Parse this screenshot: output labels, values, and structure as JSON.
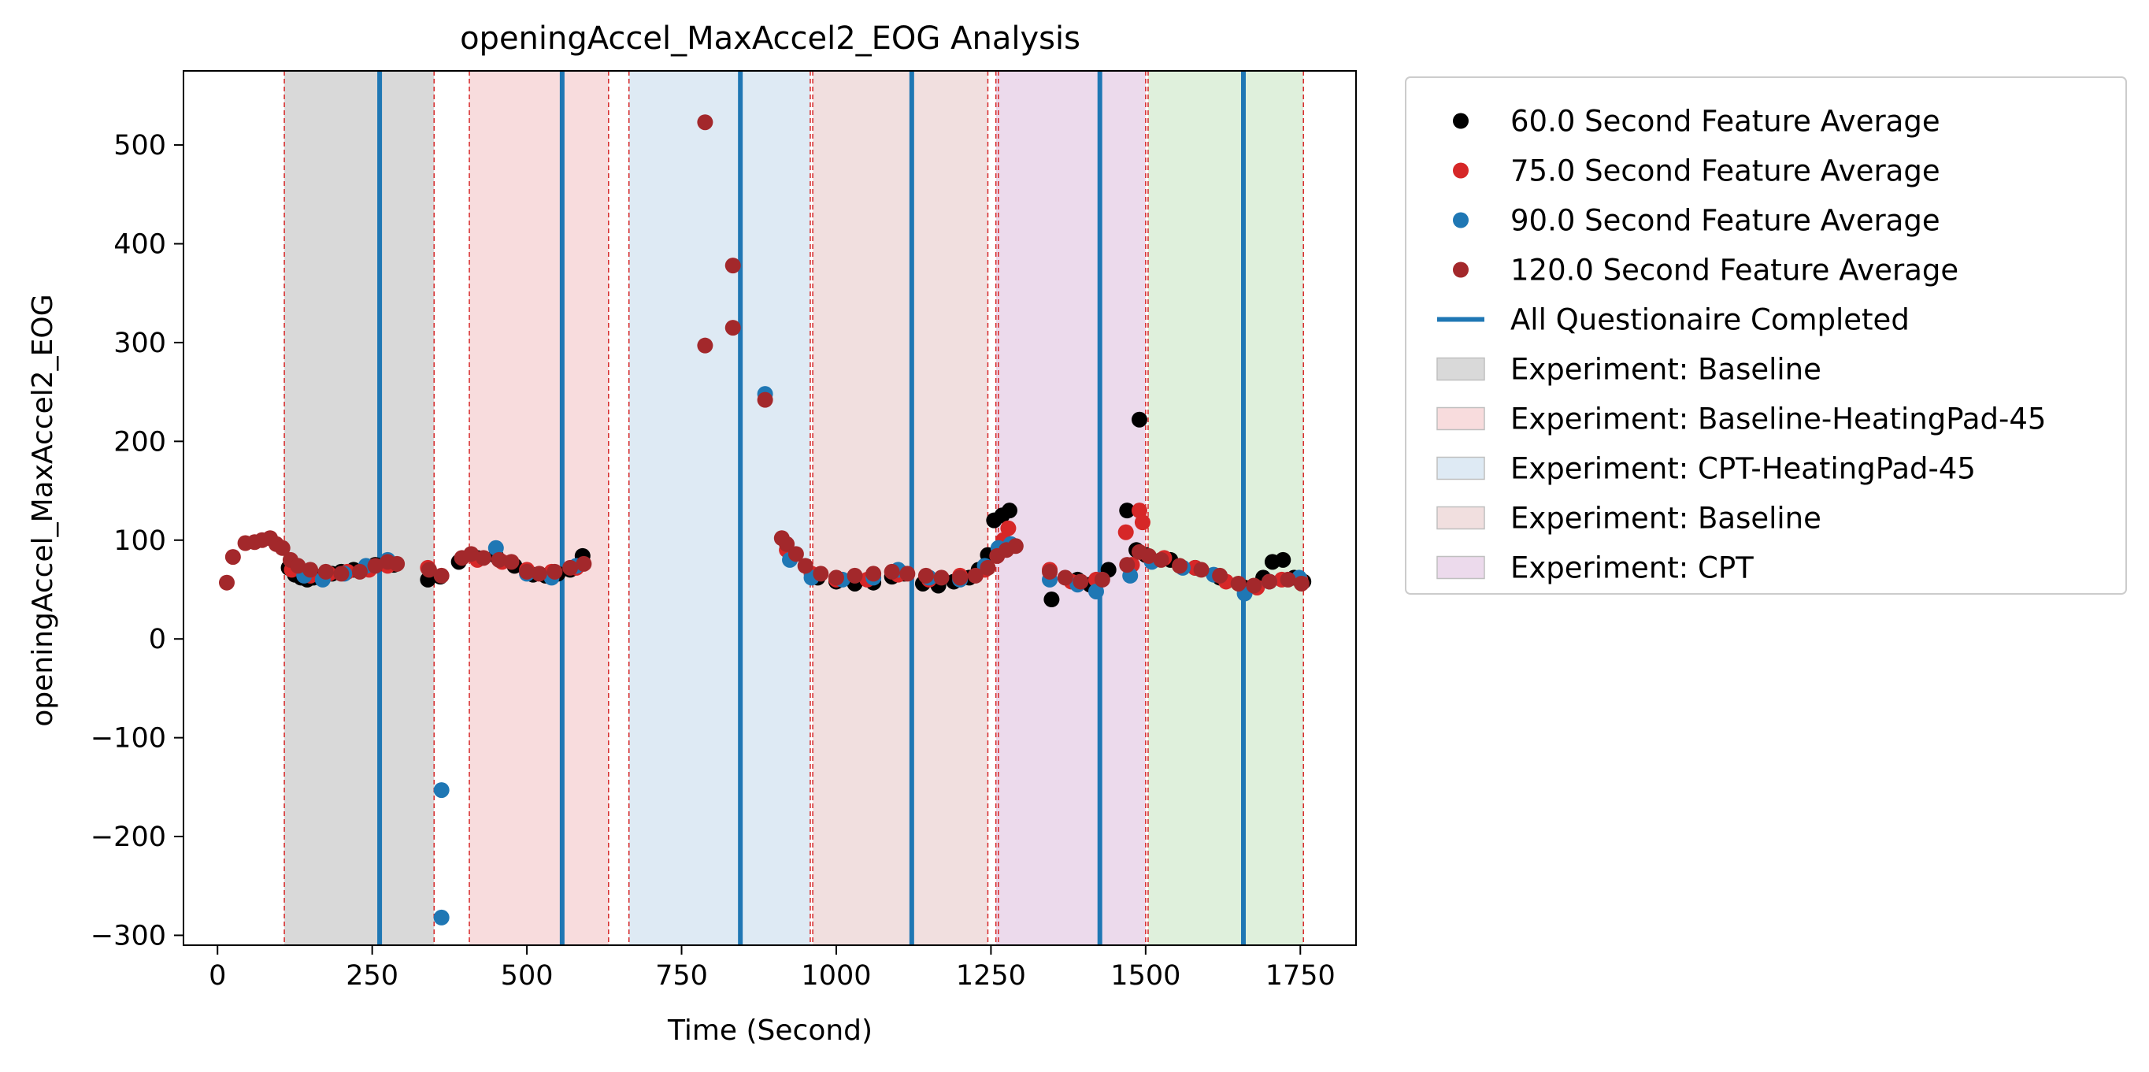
{
  "chart_data": {
    "type": "scatter",
    "title": "openingAccel_MaxAccel2_EOG Analysis",
    "xlabel": "Time (Second)",
    "ylabel": "openingAccel_MaxAccel2_EOG",
    "xlim": [
      -55,
      1840
    ],
    "ylim": [
      -310,
      575
    ],
    "xticks": [
      0,
      250,
      500,
      750,
      1000,
      1250,
      1500,
      1750
    ],
    "yticks": [
      -300,
      -200,
      -100,
      0,
      100,
      200,
      300,
      400,
      500
    ],
    "grid": false,
    "legend_position": "outside-right",
    "regions": [
      {
        "name": "Experiment: Baseline",
        "x0": 108,
        "x1": 350,
        "color": "#d9d9d9"
      },
      {
        "name": "Experiment: Baseline-HeatingPad-45",
        "x0": 407,
        "x1": 632,
        "color": "#f8dcdd"
      },
      {
        "name": "Experiment: CPT-HeatingPad-45",
        "x0": 665,
        "x1": 958,
        "color": "#deeaf4"
      },
      {
        "name": "Experiment: Baseline",
        "x0": 962,
        "x1": 1245,
        "color": "#f1dfdf"
      },
      {
        "name": "Experiment: CPT",
        "x0": 1258,
        "x1": 1500,
        "color": "#ecdaec"
      },
      {
        "name": "",
        "x0": 1504,
        "x1": 1755,
        "color": "#dff0dc"
      }
    ],
    "boundaries": [
      108,
      350,
      407,
      632,
      665,
      958,
      962,
      1245,
      1258,
      1262,
      1500,
      1504,
      1755
    ],
    "questionnaire_lines": {
      "name": "All Questionaire Completed",
      "x": [
        262,
        557,
        845,
        1122,
        1426,
        1658
      ],
      "color": "#1f77b4"
    },
    "series": [
      {
        "name": "60.0 Second Feature Average",
        "color": "#000000",
        "points": [
          [
            115,
            72
          ],
          [
            125,
            65
          ],
          [
            135,
            62
          ],
          [
            145,
            60
          ],
          [
            155,
            62
          ],
          [
            170,
            64
          ],
          [
            185,
            66
          ],
          [
            200,
            68
          ],
          [
            220,
            70
          ],
          [
            240,
            72
          ],
          [
            255,
            75
          ],
          [
            270,
            76
          ],
          [
            285,
            75
          ],
          [
            340,
            60
          ],
          [
            360,
            63
          ],
          [
            390,
            78
          ],
          [
            420,
            82
          ],
          [
            450,
            84
          ],
          [
            480,
            74
          ],
          [
            510,
            65
          ],
          [
            530,
            64
          ],
          [
            550,
            66
          ],
          [
            570,
            70
          ],
          [
            590,
            84
          ],
          [
            970,
            62
          ],
          [
            1000,
            58
          ],
          [
            1030,
            56
          ],
          [
            1060,
            57
          ],
          [
            1090,
            63
          ],
          [
            1110,
            66
          ],
          [
            1140,
            56
          ],
          [
            1165,
            54
          ],
          [
            1190,
            58
          ],
          [
            1215,
            62
          ],
          [
            1230,
            70
          ],
          [
            1245,
            85
          ],
          [
            1255,
            120
          ],
          [
            1268,
            125
          ],
          [
            1280,
            130
          ],
          [
            1348,
            40
          ],
          [
            1390,
            60
          ],
          [
            1410,
            55
          ],
          [
            1440,
            70
          ],
          [
            1470,
            130
          ],
          [
            1485,
            90
          ],
          [
            1490,
            222
          ],
          [
            1500,
            85
          ],
          [
            1540,
            80
          ],
          [
            1580,
            72
          ],
          [
            1620,
            62
          ],
          [
            1660,
            52
          ],
          [
            1690,
            62
          ],
          [
            1705,
            78
          ],
          [
            1722,
            80
          ],
          [
            1740,
            62
          ],
          [
            1755,
            58
          ]
        ]
      },
      {
        "name": "75.0 Second Feature Average",
        "color": "#d62728",
        "points": [
          [
            120,
            70
          ],
          [
            150,
            64
          ],
          [
            180,
            66
          ],
          [
            210,
            68
          ],
          [
            245,
            70
          ],
          [
            275,
            74
          ],
          [
            340,
            72
          ],
          [
            420,
            80
          ],
          [
            460,
            78
          ],
          [
            500,
            70
          ],
          [
            540,
            68
          ],
          [
            580,
            72
          ],
          [
            920,
            90
          ],
          [
            960,
            66
          ],
          [
            1000,
            60
          ],
          [
            1050,
            60
          ],
          [
            1100,
            65
          ],
          [
            1150,
            60
          ],
          [
            1200,
            64
          ],
          [
            1240,
            70
          ],
          [
            1270,
            100
          ],
          [
            1278,
            112
          ],
          [
            1345,
            70
          ],
          [
            1380,
            58
          ],
          [
            1420,
            60
          ],
          [
            1468,
            108
          ],
          [
            1478,
            75
          ],
          [
            1490,
            130
          ],
          [
            1495,
            118
          ],
          [
            1530,
            82
          ],
          [
            1580,
            72
          ],
          [
            1630,
            58
          ],
          [
            1680,
            52
          ],
          [
            1720,
            60
          ],
          [
            1750,
            60
          ]
        ]
      },
      {
        "name": "90.0 Second Feature Average",
        "color": "#1f77b4",
        "points": [
          [
            140,
            64
          ],
          [
            170,
            60
          ],
          [
            205,
            66
          ],
          [
            240,
            74
          ],
          [
            275,
            80
          ],
          [
            362,
            -153
          ],
          [
            362,
            -282
          ],
          [
            450,
            92
          ],
          [
            500,
            66
          ],
          [
            540,
            62
          ],
          [
            580,
            74
          ],
          [
            885,
            248
          ],
          [
            925,
            80
          ],
          [
            960,
            62
          ],
          [
            1010,
            60
          ],
          [
            1060,
            62
          ],
          [
            1100,
            70
          ],
          [
            1150,
            62
          ],
          [
            1200,
            60
          ],
          [
            1240,
            74
          ],
          [
            1262,
            92
          ],
          [
            1282,
            96
          ],
          [
            1345,
            60
          ],
          [
            1390,
            55
          ],
          [
            1420,
            48
          ],
          [
            1475,
            64
          ],
          [
            1510,
            78
          ],
          [
            1560,
            72
          ],
          [
            1610,
            65
          ],
          [
            1660,
            46
          ],
          [
            1700,
            58
          ],
          [
            1748,
            62
          ]
        ]
      },
      {
        "name": "120.0 Second Feature Average",
        "color": "#a3282b",
        "points": [
          [
            15,
            57
          ],
          [
            25,
            83
          ],
          [
            45,
            97
          ],
          [
            60,
            98
          ],
          [
            72,
            100
          ],
          [
            85,
            102
          ],
          [
            95,
            96
          ],
          [
            105,
            92
          ],
          [
            118,
            80
          ],
          [
            130,
            74
          ],
          [
            150,
            70
          ],
          [
            175,
            68
          ],
          [
            200,
            66
          ],
          [
            230,
            68
          ],
          [
            255,
            74
          ],
          [
            275,
            78
          ],
          [
            290,
            76
          ],
          [
            342,
            70
          ],
          [
            362,
            64
          ],
          [
            395,
            82
          ],
          [
            410,
            86
          ],
          [
            430,
            82
          ],
          [
            455,
            80
          ],
          [
            475,
            78
          ],
          [
            500,
            68
          ],
          [
            520,
            66
          ],
          [
            545,
            68
          ],
          [
            570,
            72
          ],
          [
            592,
            76
          ],
          [
            788,
            523
          ],
          [
            788,
            297
          ],
          [
            833,
            378
          ],
          [
            833,
            315
          ],
          [
            885,
            242
          ],
          [
            912,
            102
          ],
          [
            920,
            96
          ],
          [
            935,
            86
          ],
          [
            950,
            74
          ],
          [
            975,
            66
          ],
          [
            1000,
            62
          ],
          [
            1030,
            64
          ],
          [
            1060,
            66
          ],
          [
            1090,
            68
          ],
          [
            1115,
            66
          ],
          [
            1145,
            64
          ],
          [
            1170,
            62
          ],
          [
            1200,
            62
          ],
          [
            1225,
            64
          ],
          [
            1245,
            72
          ],
          [
            1260,
            84
          ],
          [
            1275,
            90
          ],
          [
            1290,
            94
          ],
          [
            1345,
            68
          ],
          [
            1370,
            62
          ],
          [
            1395,
            58
          ],
          [
            1430,
            60
          ],
          [
            1470,
            75
          ],
          [
            1490,
            88
          ],
          [
            1505,
            84
          ],
          [
            1525,
            80
          ],
          [
            1555,
            74
          ],
          [
            1590,
            70
          ],
          [
            1620,
            64
          ],
          [
            1650,
            56
          ],
          [
            1675,
            54
          ],
          [
            1700,
            58
          ],
          [
            1730,
            60
          ],
          [
            1752,
            56
          ]
        ]
      }
    ]
  }
}
